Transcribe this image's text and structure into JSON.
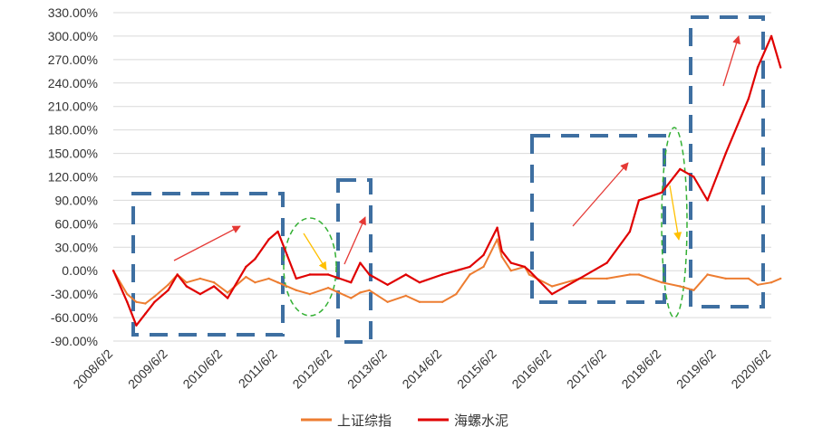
{
  "chart_data": {
    "type": "line",
    "title": "",
    "xlabel": "",
    "ylabel": "",
    "ylim": [
      -90,
      330
    ],
    "y_ticks": [
      "330.00%",
      "300.00%",
      "270.00%",
      "240.00%",
      "210.00%",
      "180.00%",
      "150.00%",
      "120.00%",
      "90.00%",
      "60.00%",
      "30.00%",
      "0.00%",
      "-30.00%",
      "-60.00%",
      "-90.00%"
    ],
    "x_ticks": [
      "2008/6/2",
      "2009/6/2",
      "2010/6/2",
      "2011/6/2",
      "2012/6/2",
      "2013/6/2",
      "2014/6/2",
      "2015/6/2",
      "2016/6/2",
      "2017/6/2",
      "2018/6/2",
      "2019/6/2",
      "2020/6/2"
    ],
    "grid": "horizontal",
    "legend_position": "bottom",
    "series": [
      {
        "name": "上证综指",
        "color": "#ED7D31",
        "x": [
          "2008/6/2",
          "2008/9/2",
          "2008/11/2",
          "2009/1/2",
          "2009/3/2",
          "2009/6/2",
          "2009/8/2",
          "2009/10/2",
          "2010/1/2",
          "2010/4/2",
          "2010/7/2",
          "2010/11/2",
          "2011/1/2",
          "2011/4/2",
          "2011/6/2",
          "2011/10/2",
          "2012/1/2",
          "2012/5/2",
          "2012/10/2",
          "2012/12/2",
          "2013/2/2",
          "2013/6/2",
          "2013/10/2",
          "2014/1/2",
          "2014/6/2",
          "2014/9/2",
          "2014/12/2",
          "2015/3/2",
          "2015/6/2",
          "2015/7/2",
          "2015/9/2",
          "2015/12/2",
          "2016/1/2",
          "2016/6/2",
          "2016/12/2",
          "2017/6/2",
          "2017/11/2",
          "2018/1/2",
          "2018/6/2",
          "2018/10/2",
          "2019/1/2",
          "2019/4/2",
          "2019/8/2",
          "2020/1/2",
          "2020/3/2",
          "2020/6/2",
          "2020/8/2"
        ],
        "values": [
          0,
          -30,
          -40,
          -42,
          -33,
          -18,
          -5,
          -15,
          -10,
          -15,
          -28,
          -8,
          -15,
          -10,
          -15,
          -25,
          -30,
          -22,
          -35,
          -28,
          -25,
          -40,
          -32,
          -40,
          -40,
          -30,
          -5,
          5,
          40,
          18,
          0,
          5,
          -5,
          -20,
          -10,
          -10,
          -5,
          -5,
          -15,
          -20,
          -25,
          -5,
          -10,
          -10,
          -18,
          -15,
          -10
        ]
      },
      {
        "name": "海螺水泥",
        "color": "#E00000",
        "x": [
          "2008/6/2",
          "2008/9/2",
          "2008/11/2",
          "2009/1/2",
          "2009/3/2",
          "2009/6/2",
          "2009/8/2",
          "2009/10/2",
          "2010/1/2",
          "2010/4/2",
          "2010/7/2",
          "2010/11/2",
          "2011/1/2",
          "2011/4/2",
          "2011/6/2",
          "2011/8/2",
          "2011/10/2",
          "2012/1/2",
          "2012/5/2",
          "2012/10/2",
          "2012/12/2",
          "2013/2/2",
          "2013/6/2",
          "2013/10/2",
          "2014/1/2",
          "2014/6/2",
          "2014/9/2",
          "2014/12/2",
          "2015/3/2",
          "2015/6/2",
          "2015/7/2",
          "2015/9/2",
          "2015/12/2",
          "2016/1/2",
          "2016/6/2",
          "2016/12/2",
          "2017/6/2",
          "2017/11/2",
          "2018/1/2",
          "2018/6/2",
          "2018/10/2",
          "2019/1/2",
          "2019/4/2",
          "2019/8/2",
          "2020/1/2",
          "2020/3/2",
          "2020/6/2",
          "2020/8/2"
        ],
        "values": [
          0,
          -40,
          -70,
          -55,
          -40,
          -25,
          -5,
          -20,
          -30,
          -20,
          -35,
          5,
          15,
          40,
          50,
          20,
          -10,
          -5,
          -5,
          -15,
          10,
          -5,
          -18,
          -5,
          -15,
          -5,
          0,
          5,
          20,
          55,
          25,
          10,
          5,
          0,
          -30,
          -10,
          10,
          50,
          90,
          100,
          130,
          120,
          90,
          150,
          220,
          260,
          300,
          260
        ]
      }
    ]
  },
  "legend": {
    "items": [
      {
        "label": "上证综指",
        "color": "#ED7D31"
      },
      {
        "label": "海螺水泥",
        "color": "#E00000"
      }
    ]
  }
}
